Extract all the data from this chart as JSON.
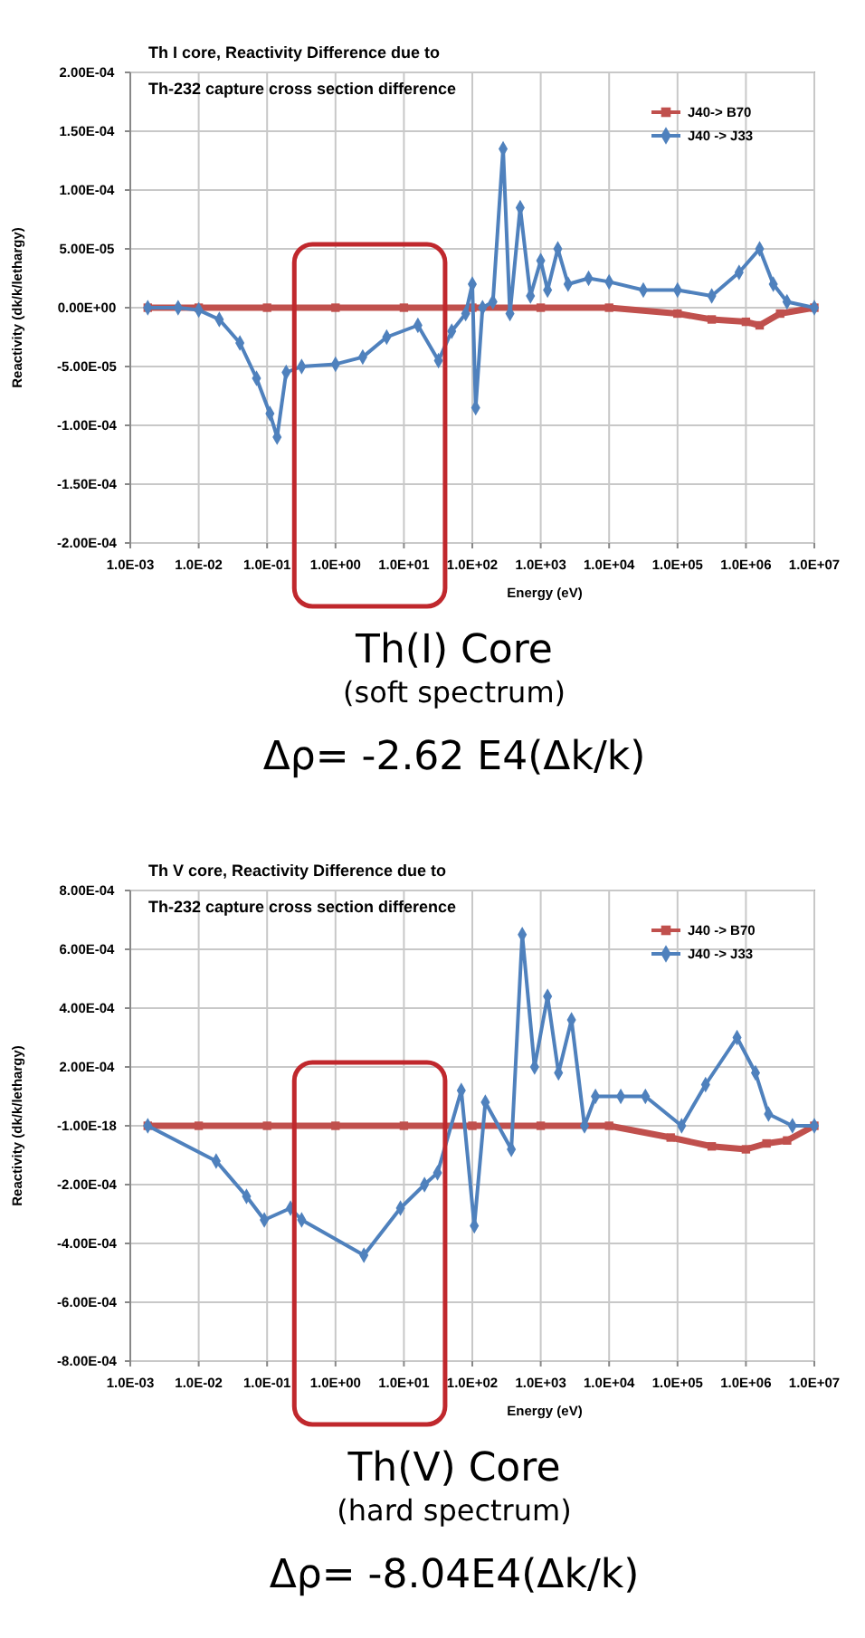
{
  "chart_data": [
    {
      "type": "line",
      "title": "Th I core, Reactivity  Difference due to",
      "subtitle": "Th-232 capture cross section difference",
      "xlabel": "Energy (eV)",
      "ylabel": "Reactivity (dk/k/lethargy)",
      "annotations": [
        "Th(I) Core",
        "(soft spectrum)",
        "Δρ= -2.62 E4(Δk/k)"
      ],
      "log": "x",
      "xlim": [
        0.001,
        10000000
      ],
      "xticks": [
        {
          "value": 0.001,
          "label": "1.0E-03"
        },
        {
          "value": 0.01,
          "label": "1.0E-02"
        },
        {
          "value": 0.1,
          "label": "1.0E-01"
        },
        {
          "value": 1,
          "label": "1.0E+00"
        },
        {
          "value": 10,
          "label": "1.0E+01"
        },
        {
          "value": 100,
          "label": "1.0E+02"
        },
        {
          "value": 1000,
          "label": "1.0E+03"
        },
        {
          "value": 10000,
          "label": "1.0E+04"
        },
        {
          "value": 100000,
          "label": "1.0E+05"
        },
        {
          "value": 1000000,
          "label": "1.0E+06"
        },
        {
          "value": 10000000,
          "label": "1.0E+07"
        }
      ],
      "ylim": [
        -0.0002,
        0.0002
      ],
      "yticks": [
        {
          "value": -0.0002,
          "label": "-2.00E-04"
        },
        {
          "value": -0.00015,
          "label": "-1.50E-04"
        },
        {
          "value": -0.0001,
          "label": "-1.00E-04"
        },
        {
          "value": -5e-05,
          "label": "-5.00E-05"
        },
        {
          "value": 0,
          "label": "0.00E+00"
        },
        {
          "value": 5e-05,
          "label": "5.00E-05"
        },
        {
          "value": 0.0001,
          "label": "1.00E-04"
        },
        {
          "value": 0.00015,
          "label": "1.50E-04"
        },
        {
          "value": 0.0002,
          "label": "2.00E-04"
        }
      ],
      "grid": true,
      "legend": "top right",
      "series": [
        {
          "name": "J40-> B70",
          "color": "#c0504d",
          "marker": "square",
          "x": [
            0.0018,
            0.01,
            0.1,
            1,
            10,
            100,
            1000,
            10000,
            100000,
            316228,
            1000000,
            1584893,
            3162278,
            10000000
          ],
          "values": [
            0,
            0,
            0,
            0,
            0,
            0,
            0,
            0,
            -5e-06,
            -1e-05,
            -1.2e-05,
            -1.5e-05,
            -5e-06,
            0
          ]
        },
        {
          "name": "J40 -> J33",
          "color": "#4f81bd",
          "marker": "diamond",
          "x": [
            0.0018,
            0.005,
            0.01,
            0.02,
            0.04,
            0.07,
            0.11,
            0.14,
            0.19,
            0.32,
            1,
            2.5,
            5.6,
            16,
            32,
            50,
            80,
            100,
            112,
            141,
            200,
            282,
            355,
            501,
            708,
            1000,
            1259,
            1778,
            2512,
            5012,
            10000,
            31623,
            100000,
            316228,
            794328,
            1584893,
            2511886,
            3981072,
            10000000
          ],
          "values": [
            0,
            0,
            -2e-06,
            -1e-05,
            -3e-05,
            -6e-05,
            -9e-05,
            -0.00011,
            -5.5e-05,
            -5e-05,
            -4.8e-05,
            -4.2e-05,
            -2.5e-05,
            -1.5e-05,
            -4.5e-05,
            -2e-05,
            -5e-06,
            2e-05,
            -8.5e-05,
            0,
            5e-06,
            0.000135,
            -5e-06,
            8.5e-05,
            1e-05,
            4e-05,
            1.5e-05,
            5e-05,
            2e-05,
            2.5e-05,
            2.2e-05,
            1.5e-05,
            1.5e-05,
            1e-05,
            3e-05,
            5e-05,
            2e-05,
            5e-06,
            0
          ]
        }
      ]
    },
    {
      "type": "line",
      "title": "Th V core, Reactivity  Difference due to",
      "subtitle": "Th-232 capture cross section difference",
      "xlabel": "Energy (eV)",
      "ylabel": "Reactivity (dk/k/lethargy)",
      "annotations": [
        "Th(V) Core",
        "(hard spectrum)",
        "Δρ= -8.04E4(Δk/k)"
      ],
      "log": "x",
      "xlim": [
        0.001,
        10000000
      ],
      "xticks": [
        {
          "value": 0.001,
          "label": "1.0E-03"
        },
        {
          "value": 0.01,
          "label": "1.0E-02"
        },
        {
          "value": 0.1,
          "label": "1.0E-01"
        },
        {
          "value": 1,
          "label": "1.0E+00"
        },
        {
          "value": 10,
          "label": "1.0E+01"
        },
        {
          "value": 100,
          "label": "1.0E+02"
        },
        {
          "value": 1000,
          "label": "1.0E+03"
        },
        {
          "value": 10000,
          "label": "1.0E+04"
        },
        {
          "value": 100000,
          "label": "1.0E+05"
        },
        {
          "value": 1000000,
          "label": "1.0E+06"
        },
        {
          "value": 10000000,
          "label": "1.0E+07"
        }
      ],
      "ylim": [
        -0.0008,
        0.0008
      ],
      "yticks": [
        {
          "value": -0.0008,
          "label": "-8.00E-04"
        },
        {
          "value": -0.0006,
          "label": "-6.00E-04"
        },
        {
          "value": -0.0004,
          "label": "-4.00E-04"
        },
        {
          "value": -0.0002,
          "label": "-2.00E-04"
        },
        {
          "value": 0,
          "label": "-1.00E-18"
        },
        {
          "value": 0.0002,
          "label": "2.00E-04"
        },
        {
          "value": 0.0004,
          "label": "4.00E-04"
        },
        {
          "value": 0.0006,
          "label": "6.00E-04"
        },
        {
          "value": 0.0008,
          "label": "8.00E-04"
        }
      ],
      "grid": true,
      "legend": "top right",
      "series": [
        {
          "name": "J40 -> B70",
          "color": "#c0504d",
          "marker": "square",
          "x": [
            0.0018,
            0.01,
            0.1,
            1,
            10,
            100,
            1000,
            10000,
            79433,
            316228,
            1000000,
            2000000,
            4000000,
            10000000
          ],
          "values": [
            0,
            0,
            0,
            0,
            0,
            0,
            0,
            0,
            -4e-05,
            -7e-05,
            -8e-05,
            -6e-05,
            -5e-05,
            0
          ]
        },
        {
          "name": "J40 -> J33",
          "color": "#4f81bd",
          "marker": "diamond",
          "x": [
            0.0018,
            0.018,
            0.05,
            0.091,
            0.22,
            0.32,
            2.6,
            8.9,
            20,
            31,
            69,
            107,
            155,
            372,
            537,
            813,
            1259,
            1820,
            2818,
            4365,
            6310,
            14791,
            33884,
            114815,
            257040,
            741310,
            1380384,
            2137962,
            4786301,
            10000000
          ],
          "values": [
            0,
            -0.00012,
            -0.00024,
            -0.00032,
            -0.00028,
            -0.00032,
            -0.00044,
            -0.00028,
            -0.0002,
            -0.00016,
            0.00012,
            -0.00034,
            8e-05,
            -8e-05,
            0.00065,
            0.0002,
            0.00044,
            0.00018,
            0.00036,
            0,
            0.0001,
            0.0001,
            0.0001,
            0,
            0.00014,
            0.0003,
            0.00018,
            4e-05,
            0,
            0
          ]
        }
      ]
    }
  ]
}
